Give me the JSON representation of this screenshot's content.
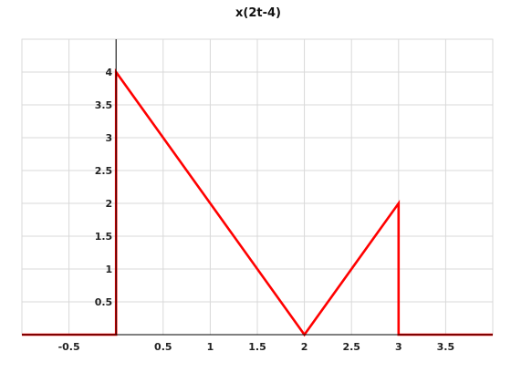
{
  "chart_data": {
    "type": "line",
    "title": "x(2t-4)",
    "xlabel": "",
    "ylabel": "",
    "xlim": [
      -1,
      4
    ],
    "ylim": [
      0,
      4.5
    ],
    "grid": true,
    "x_ticks": [
      -0.5,
      0,
      0.5,
      1,
      1.5,
      2,
      2.5,
      3,
      3.5
    ],
    "x_tick_labels": [
      "-0.5",
      "",
      "0.5",
      "1",
      "1.5",
      "2",
      "2.5",
      "3",
      "3.5"
    ],
    "y_ticks": [
      0.5,
      1,
      1.5,
      2,
      2.5,
      3,
      3.5,
      4
    ],
    "y_tick_labels": [
      "0.5",
      "1",
      "1.5",
      "2",
      "2.5",
      "3",
      "3.5",
      "4"
    ],
    "series": [
      {
        "color": "#ff0000",
        "x": [
          -1,
          0,
          0,
          2,
          3,
          3,
          4
        ],
        "y": [
          0,
          0,
          4,
          0,
          2,
          0,
          0
        ]
      }
    ]
  }
}
